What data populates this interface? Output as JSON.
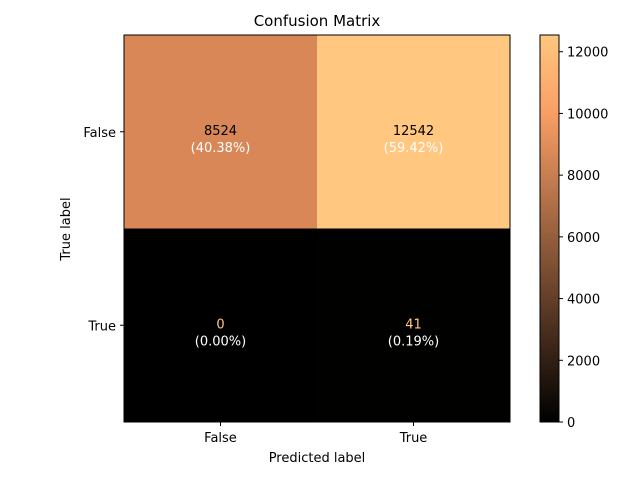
{
  "chart_data": {
    "type": "heatmap",
    "title": "Confusion Matrix",
    "xlabel": "Predicted label",
    "ylabel": "True label",
    "x_categories": [
      "False",
      "True"
    ],
    "y_categories": [
      "False",
      "True"
    ],
    "values": [
      [
        8524,
        12542
      ],
      [
        0,
        41
      ]
    ],
    "percent_labels": [
      [
        "(40.38%)",
        "(59.42%)"
      ],
      [
        "(0.00%)",
        "(0.19%)"
      ]
    ],
    "colormap": "copper",
    "colorbar": {
      "range": [
        0,
        12542
      ],
      "ticks": [
        0,
        2000,
        4000,
        6000,
        8000,
        10000,
        12000
      ]
    }
  }
}
